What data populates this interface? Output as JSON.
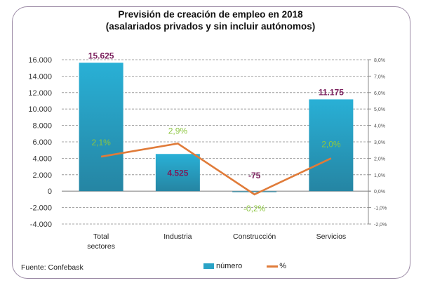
{
  "chart_data": {
    "type": "bar",
    "title": "Previsión de creación de empleo en 2018",
    "subtitle": "(asalariados privados y sin incluir autónomos)",
    "categories": [
      "Total sectores",
      "Industria",
      "Construcción",
      "Servicios"
    ],
    "category_lines": [
      [
        "Total",
        "sectores"
      ],
      [
        "Industria"
      ],
      [
        "Construcción"
      ],
      [
        "Servicios"
      ]
    ],
    "series": [
      {
        "name": "número",
        "type": "bar",
        "axis": "left",
        "values": [
          15625,
          4525,
          -75,
          11175
        ],
        "labels": [
          "15.625",
          "4.525",
          "-75",
          "11.175"
        ],
        "color": "#2aa3c6",
        "label_color": "#7a1f5c"
      },
      {
        "name": "%",
        "type": "line",
        "axis": "right",
        "values": [
          2.1,
          2.9,
          -0.2,
          2.0
        ],
        "labels": [
          "2,1%",
          "2,9%",
          "-0,2%",
          "2,0%"
        ],
        "color": "#e07b39",
        "label_color": "#8cc63f"
      }
    ],
    "y_left": {
      "range": [
        -4000,
        16000
      ],
      "ticks": [
        16000,
        14000,
        12000,
        10000,
        8000,
        6000,
        4000,
        2000,
        0,
        -2000,
        -4000
      ],
      "tick_labels": [
        "16.000",
        "14.000",
        "12.000",
        "10.000",
        "8.000",
        "6.000",
        "4.000",
        "2.000",
        "0",
        "-2.000",
        "-4.000"
      ]
    },
    "y_right": {
      "range": [
        -2.0,
        8.0
      ],
      "ticks": [
        8,
        7,
        6,
        5,
        4,
        3,
        2,
        1,
        0,
        -1,
        -2
      ],
      "tick_labels": [
        "8,0%",
        "7,0%",
        "6,0%",
        "5,0%",
        "4,0%",
        "3,0%",
        "2,0%",
        "1,0%",
        "0,0%",
        "-1,0%",
        "-2,0%"
      ]
    },
    "grid": true,
    "legend_position": "bottom",
    "xlabel": "",
    "ylabel": ""
  },
  "source": "Fuente: Confebask",
  "legend": {
    "bar_label": "número",
    "line_label": "%"
  }
}
